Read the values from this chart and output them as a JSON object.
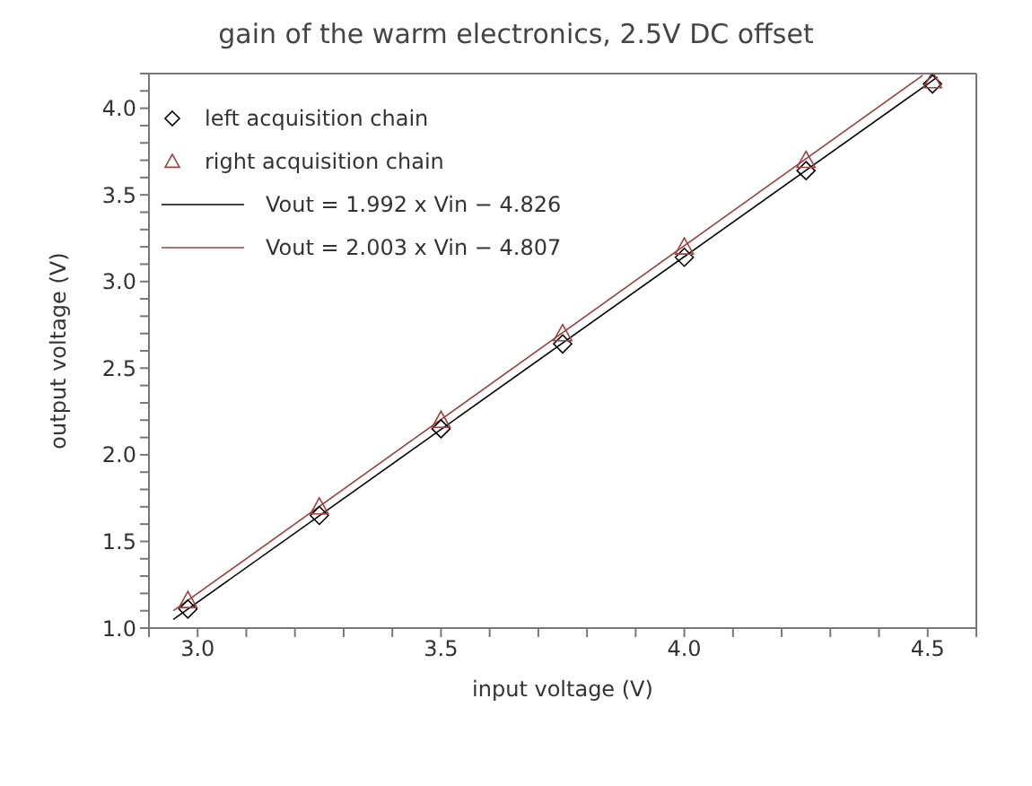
{
  "chart_data": {
    "type": "scatter",
    "title": "gain of the warm electronics, 2.5V DC offset",
    "xlabel": "input voltage (V)",
    "ylabel": "output voltage (V)",
    "xlim": [
      2.9,
      4.6
    ],
    "ylim": [
      1.0,
      4.2
    ],
    "xticks": [
      {
        "value": 2.9,
        "label": null
      },
      {
        "value": 3,
        "label": "3.0"
      },
      {
        "value": 3.1,
        "label": null
      },
      {
        "value": 3.2,
        "label": null
      },
      {
        "value": 3.3,
        "label": null
      },
      {
        "value": 3.4,
        "label": null
      },
      3.5,
      {
        "value": 3.6,
        "label": null
      },
      {
        "value": 3.7,
        "label": null
      },
      {
        "value": 3.8,
        "label": null
      },
      {
        "value": 3.9,
        "label": null
      },
      {
        "value": 4,
        "label": "4.0"
      },
      {
        "value": 4.1,
        "label": null
      },
      {
        "value": 4.2,
        "label": null
      },
      {
        "value": 4.3,
        "label": null
      },
      {
        "value": 4.4,
        "label": null
      },
      4.5,
      {
        "value": 4.6,
        "label": null
      }
    ],
    "yticks": [
      {
        "value": 1,
        "label": "1.0"
      },
      {
        "value": 1.1,
        "label": null
      },
      {
        "value": 1.2,
        "label": null
      },
      {
        "value": 1.3,
        "label": null
      },
      {
        "value": 1.4,
        "label": null
      },
      1.5,
      {
        "value": 1.6,
        "label": null
      },
      {
        "value": 1.7,
        "label": null
      },
      {
        "value": 1.8,
        "label": null
      },
      {
        "value": 1.9,
        "label": null
      },
      {
        "value": 2,
        "label": "2.0"
      },
      {
        "value": 2.1,
        "label": null
      },
      {
        "value": 2.2,
        "label": null
      },
      {
        "value": 2.3,
        "label": null
      },
      {
        "value": 2.4,
        "label": null
      },
      2.5,
      {
        "value": 2.6,
        "label": null
      },
      {
        "value": 2.7,
        "label": null
      },
      {
        "value": 2.8,
        "label": null
      },
      {
        "value": 2.9,
        "label": null
      },
      {
        "value": 3,
        "label": "3.0"
      },
      {
        "value": 3.1,
        "label": null
      },
      {
        "value": 3.2,
        "label": null
      },
      {
        "value": 3.3,
        "label": null
      },
      {
        "value": 3.4,
        "label": null
      },
      3.5,
      {
        "value": 3.6,
        "label": null
      },
      {
        "value": 3.7,
        "label": null
      },
      {
        "value": 3.8,
        "label": null
      },
      {
        "value": 3.9,
        "label": null
      },
      {
        "value": 4,
        "label": "4.0"
      },
      {
        "value": 4.1,
        "label": null
      },
      {
        "value": 4.2,
        "label": null
      }
    ],
    "legend": "top left",
    "series": [
      {
        "name": "left acquisition chain",
        "color": "#000000",
        "marker": "diamond",
        "x": [
          2.98,
          3.25,
          3.5,
          3.75,
          4.0,
          4.25,
          4.51
        ],
        "values": [
          1.11,
          1.65,
          2.15,
          2.64,
          3.14,
          3.64,
          4.14
        ]
      },
      {
        "name": "right acquisition chain",
        "color": "#a04040",
        "marker": "triangle",
        "x": [
          2.98,
          3.25,
          3.5,
          3.75,
          4.0,
          4.25,
          4.51
        ],
        "values": [
          1.16,
          1.7,
          2.2,
          2.7,
          3.2,
          3.7,
          4.16
        ]
      },
      {
        "type": "line",
        "name": "Vout = 1.992 x Vin − 4.826",
        "color": "#000000",
        "marker": "none",
        "x": [
          2.95,
          4.52
        ],
        "values": [
          1.05,
          4.18
        ]
      },
      {
        "type": "line",
        "name": "Vout = 2.003 x Vin − 4.807",
        "color": "#a04040",
        "marker": "none",
        "x": [
          2.95,
          4.49
        ],
        "values": [
          1.1,
          4.19
        ]
      }
    ]
  }
}
